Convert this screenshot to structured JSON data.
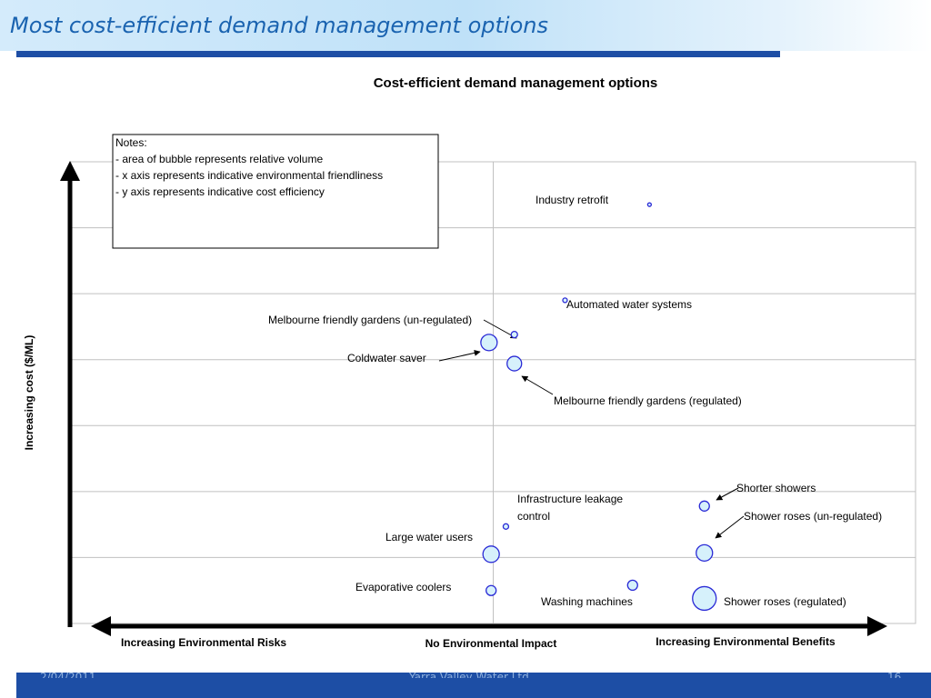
{
  "slide": {
    "title": "Most cost-efficient demand management options",
    "footer": {
      "date": "2/04/2011",
      "org": "Yarra Valley Water Ltd",
      "page": "16"
    }
  },
  "colors": {
    "header_bar": "#1d4ea5",
    "title": "#1a63b0",
    "bubble_stroke": "#2a2ad6",
    "bubble_fill": "#d6f1fb",
    "grid": "#c0c0c0"
  },
  "chart_data": {
    "type": "scatter",
    "subtype": "bubble",
    "title": "Cost-efficient demand management options",
    "ylabel": "Increasing cost ($/ML)",
    "x_axis_labels": {
      "left": "Increasing Environmental Risks",
      "center": "No Environmental Impact",
      "right": "Increasing Environmental Benefits"
    },
    "xlim": [
      -1,
      1
    ],
    "ylim": [
      0,
      7
    ],
    "grid": true,
    "notes": {
      "heading": "Notes:",
      "lines": [
        "- area of bubble represents relative volume",
        "- x axis represents indicative environmental friendliness",
        "- y axis represents indicative cost efficiency"
      ]
    },
    "points": [
      {
        "label": "Industry retrofit",
        "x": 0.37,
        "y": 6.35,
        "r": 2
      },
      {
        "label": "Automated water systems",
        "x": 0.17,
        "y": 4.9,
        "r": 2.5
      },
      {
        "label": "Melbourne friendly gardens (un-regulated)",
        "x": 0.05,
        "y": 4.38,
        "r": 3.5
      },
      {
        "label": "Coldwater saver",
        "x": -0.01,
        "y": 4.26,
        "r": 9
      },
      {
        "label": "Melbourne friendly gardens (regulated)",
        "x": 0.05,
        "y": 3.94,
        "r": 8
      },
      {
        "label": "Shorter showers",
        "x": 0.5,
        "y": 1.78,
        "r": 5.5
      },
      {
        "label": "Infrastructure leakage control",
        "label_lines": [
          "Infrastructure leakage",
          "control"
        ],
        "x": 0.03,
        "y": 1.47,
        "r": 3
      },
      {
        "label": "Shower roses (un-regulated)",
        "x": 0.5,
        "y": 1.07,
        "r": 9
      },
      {
        "label": "Large water users",
        "x": -0.005,
        "y": 1.05,
        "r": 9
      },
      {
        "label": "Washing machines",
        "x": 0.33,
        "y": 0.58,
        "r": 5.5
      },
      {
        "label": "Evaporative coolers",
        "x": -0.005,
        "y": 0.5,
        "r": 5.5
      },
      {
        "label": "Shower roses (regulated)",
        "x": 0.5,
        "y": 0.38,
        "r": 13
      }
    ]
  }
}
